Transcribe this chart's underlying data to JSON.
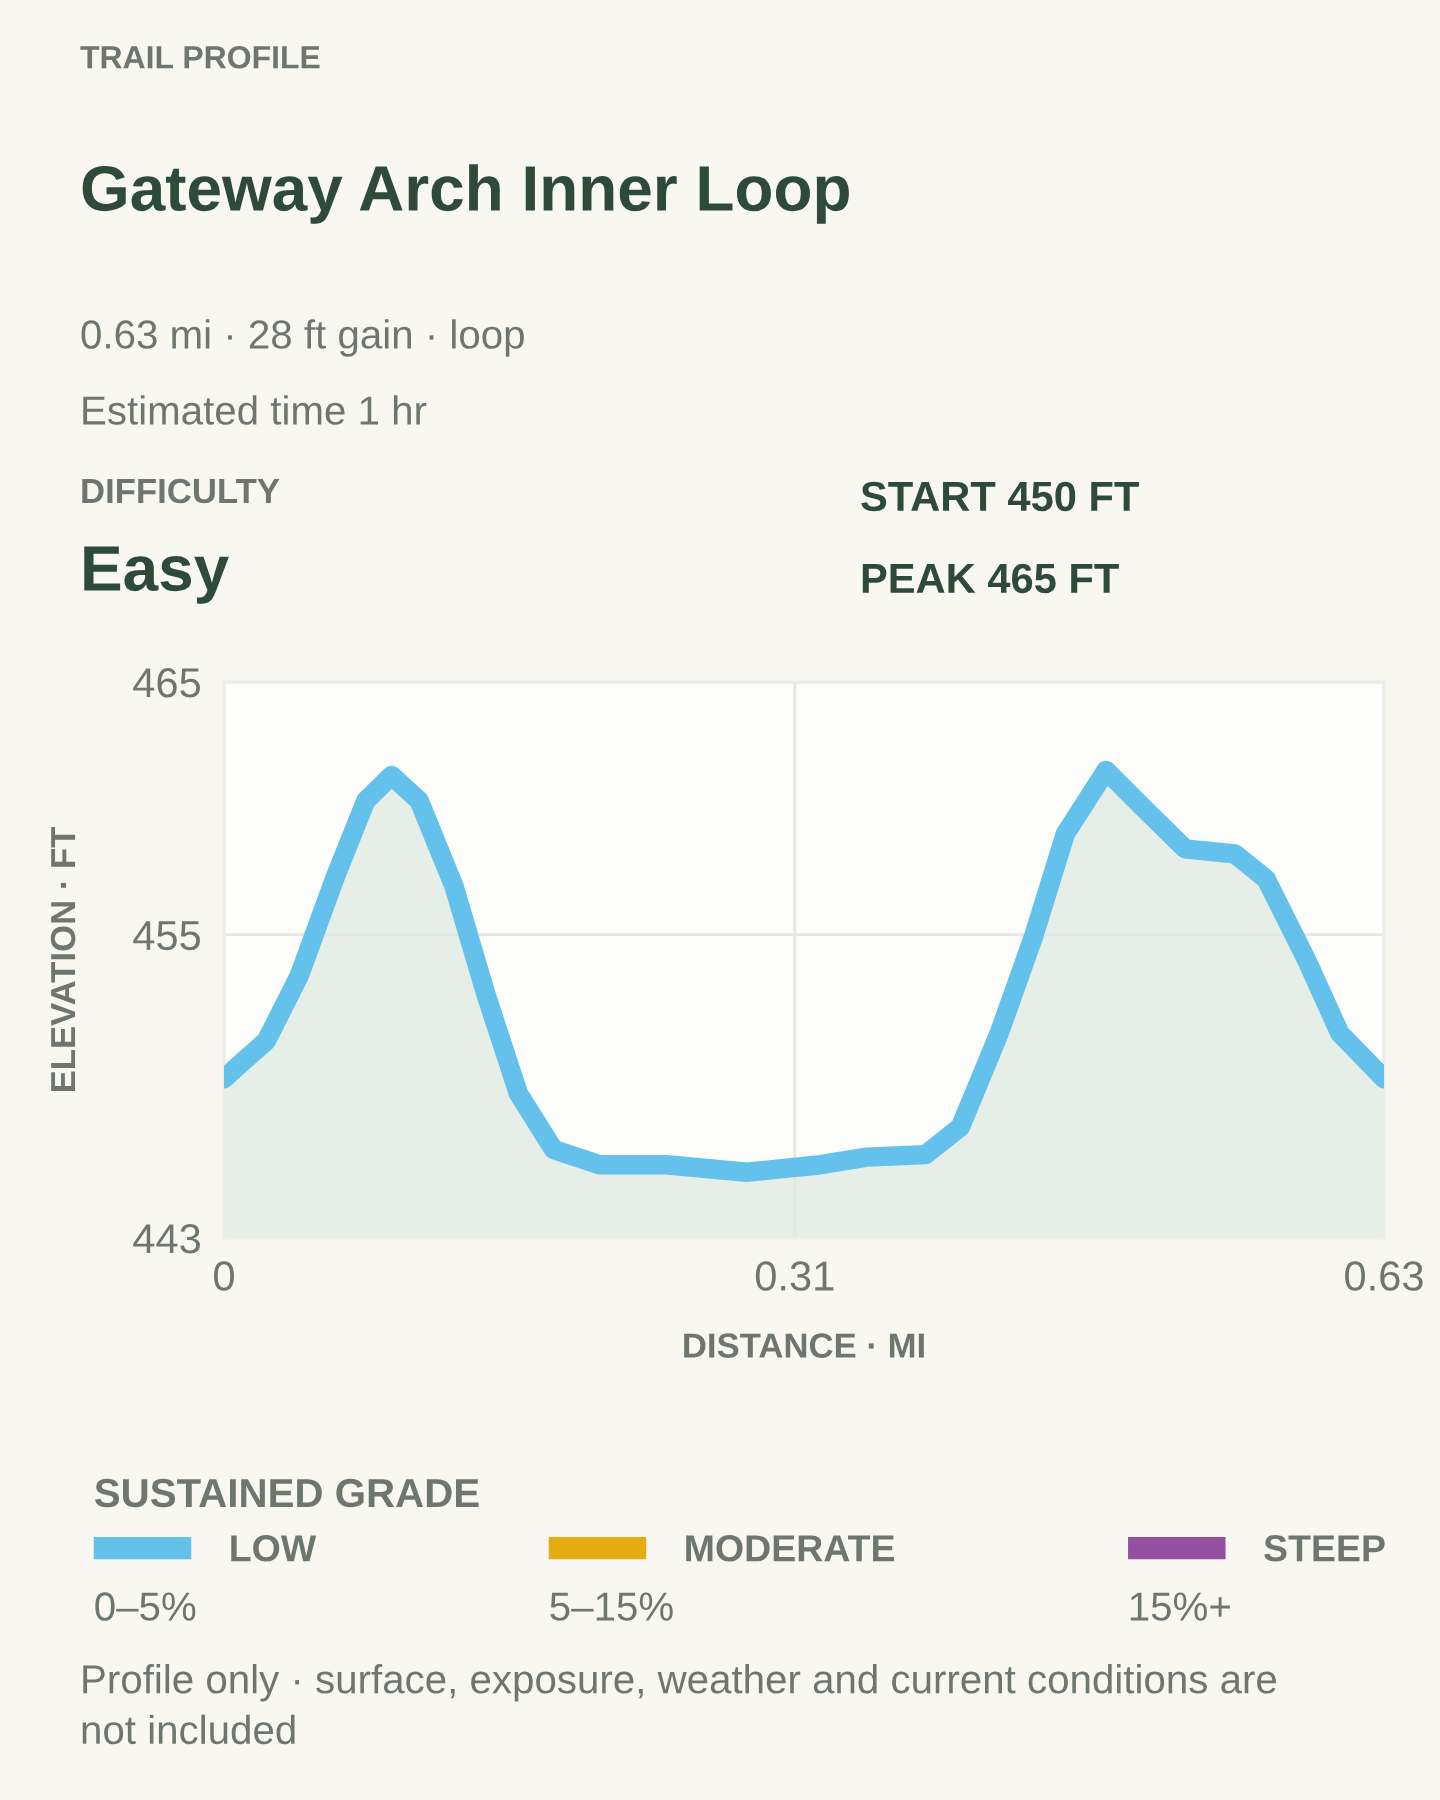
{
  "chart_data": {
    "type": "area",
    "title": "Gateway Arch Inner Loop",
    "subtitle": "0.63 mi · 28 ft gain · loop",
    "xlabel": "DISTANCE · MI",
    "ylabel": "ELEVATION · FT",
    "legend_title": "SUSTAINED GRADE",
    "annotations": [
      "TRAIL PROFILE",
      "Estimated time 1 hr",
      "DIFFICULTY",
      "Easy",
      "START 450 FT",
      "PEAK 465 FT",
      "0–5%",
      "5–15%",
      "15%+",
      "Profile only · surface, exposure, weather and current conditions are not included"
    ],
    "x": [
      0,
      0.009,
      0.023,
      0.041,
      0.06,
      0.077,
      0.091,
      0.106,
      0.125,
      0.142,
      0.16,
      0.179,
      0.204,
      0.24,
      0.284,
      0.324,
      0.349,
      0.381,
      0.4,
      0.421,
      0.44,
      0.457,
      0.479,
      0.501,
      0.522,
      0.549,
      0.566,
      0.588,
      0.606,
      0.63
    ],
    "series": [
      {
        "name": "LOW",
        "color": "#64c1eb",
        "values": [
          449.3,
          449.9,
          450.8,
          453.4,
          457.2,
          460.3,
          461.3,
          460.3,
          456.9,
          452.7,
          448.7,
          446.5,
          445.9,
          445.9,
          445.6,
          445.9,
          446.2,
          446.3,
          447.4,
          451.1,
          455.0,
          459.0,
          461.5,
          459.9,
          458.4,
          458.2,
          457.2,
          454.0,
          451.1,
          449.3
        ]
      },
      {
        "name": "MODERATE",
        "color": "#e6ad12",
        "values": [
          null,
          null,
          null,
          null,
          null,
          null,
          null,
          null,
          null,
          null,
          null,
          null,
          null,
          null,
          null,
          null,
          null,
          null,
          null,
          null,
          null,
          null,
          null,
          null,
          null,
          null,
          null,
          null,
          null,
          null
        ]
      },
      {
        "name": "STEEP",
        "color": "#9451a0",
        "values": [
          null,
          null,
          null,
          null,
          null,
          null,
          null,
          null,
          null,
          null,
          null,
          null,
          null,
          null,
          null,
          null,
          null,
          null,
          null,
          null,
          null,
          null,
          null,
          null,
          null,
          null,
          null,
          null,
          null,
          null
        ]
      }
    ],
    "xlim": [
      0,
      0.63
    ],
    "xticks": [
      0,
      0.31,
      0.63
    ],
    "ylim": [
      443,
      465
    ],
    "yticks": [
      443,
      455,
      465
    ],
    "grid": true,
    "legend": "bottom",
    "marker": "none",
    "line_style": "solid"
  }
}
